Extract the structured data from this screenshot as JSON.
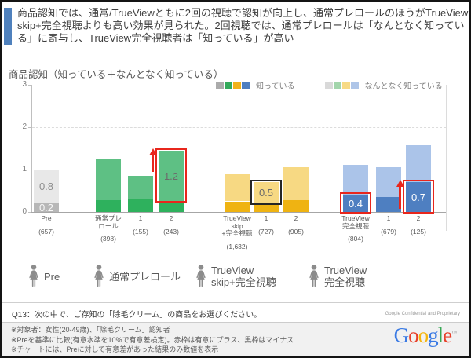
{
  "slide": {
    "title": "商品認知では、通常/TrueViewともに2回の視聴で認知が向上し、通常プレロールのほうがTrueView skip+完全視聴よりも高い効果が見られた。2回視聴では、通常プレロールは「なんとなく知っている」に寄与し、TrueView完全視聴者は「知っている」が高い",
    "question": "Q13：次の中で、ご存知の「除毛クリーム」の商品をお選びください。",
    "confidential": "Google Confidential and Proprietary",
    "notes": [
      "※対象者：女性(20-49歳)、「除毛クリーム」認知者",
      "※Preを基準に比較(有意水準を10%で有意差検定)。赤枠は有意にプラス、黒枠はマイナス",
      "※チャートには、Preに対して有意差があった結果のみ数値を表示"
    ],
    "logo_letters": [
      {
        "ch": "G",
        "color": "#3a7ae4"
      },
      {
        "ch": "o",
        "color": "#e8402a"
      },
      {
        "ch": "o",
        "color": "#f6b50b"
      },
      {
        "ch": "g",
        "color": "#3a7ae4"
      },
      {
        "ch": "l",
        "color": "#36a854"
      },
      {
        "ch": "e",
        "color": "#e8402a"
      }
    ],
    "logo_tm": "™"
  },
  "audience": [
    {
      "label": "Pre"
    },
    {
      "label": "通常プレロール"
    },
    {
      "label": "TrueView\nskip+完全視聴"
    },
    {
      "label": "TrueView\n完全視聴"
    }
  ],
  "chart_data": {
    "type": "bar",
    "stacked": true,
    "title": "商品認知（知っている＋なんとなく知っている）",
    "ylim": [
      0,
      3
    ],
    "yticks": [
      0,
      1,
      2,
      3
    ],
    "series_names": [
      "知っている",
      "なんとなく知っている"
    ],
    "legend": [
      {
        "label": "知っている",
        "swatches": [
          "#ababab",
          "#33a95b",
          "#f1b21a",
          "#4d7ec0"
        ]
      },
      {
        "label": "なんとなく知っている",
        "swatches": [
          "#d9d9d9",
          "#a2d5ab",
          "#f7da85",
          "#aec5e8"
        ]
      }
    ],
    "colors": {
      "pre": {
        "dark": "#b7b7b7",
        "light": "#e8e8e8"
      },
      "preroll": {
        "dark": "#2eb15d",
        "light": "#5ec084"
      },
      "skip": {
        "dark": "#efb312",
        "light": "#f7d983"
      },
      "full": {
        "dark": "#4e7fc1",
        "light": "#abc4e9"
      }
    },
    "accent_red": "#e8261c",
    "outline_black": "#262626",
    "bars": [
      {
        "group": "pre",
        "label": "Pre",
        "n": "(657)",
        "know": 0.2,
        "somewhat": 0.8,
        "know_label": "0.2",
        "somewhat_label": "0.8"
      },
      {
        "group": "preroll",
        "label": "通常プレ\nロール",
        "n": "(398)",
        "know": 0.27,
        "somewhat": 0.98
      },
      {
        "group": "preroll",
        "label": "1",
        "n": "(155)",
        "know": 0.3,
        "somewhat": 0.55
      },
      {
        "group": "preroll",
        "label": "2",
        "n": "(243)",
        "know": 0.25,
        "somewhat": 1.2,
        "somewhat_label": "1.2",
        "outline": {
          "segment": "somewhat",
          "color": "red"
        },
        "arrow": true
      },
      {
        "group": "skip",
        "label": "TrueView\nskip\n+完全視聴",
        "n": "(1,632)",
        "know": 0.25,
        "somewhat": 0.63
      },
      {
        "group": "skip",
        "label": "1",
        "n": "(727)",
        "know": 0.2,
        "somewhat": 0.5,
        "somewhat_label": "0.5",
        "outline": {
          "segment": "somewhat",
          "color": "black"
        }
      },
      {
        "group": "skip",
        "label": "2",
        "n": "(905)",
        "know": 0.27,
        "somewhat": 0.78
      },
      {
        "group": "full",
        "label": "TrueView\n完全視聴",
        "n": "(804)",
        "know": 0.4,
        "somewhat": 0.72,
        "know_label": "0.4",
        "outline": {
          "segment": "know",
          "color": "red"
        }
      },
      {
        "group": "full",
        "label": "1",
        "n": "(679)",
        "know": 0.35,
        "somewhat": 0.7
      },
      {
        "group": "full",
        "label": "2",
        "n": "(125)",
        "know": 0.7,
        "somewhat": 0.88,
        "know_label": "0.7",
        "outline": {
          "segment": "know",
          "color": "red"
        },
        "arrow": true
      }
    ]
  }
}
